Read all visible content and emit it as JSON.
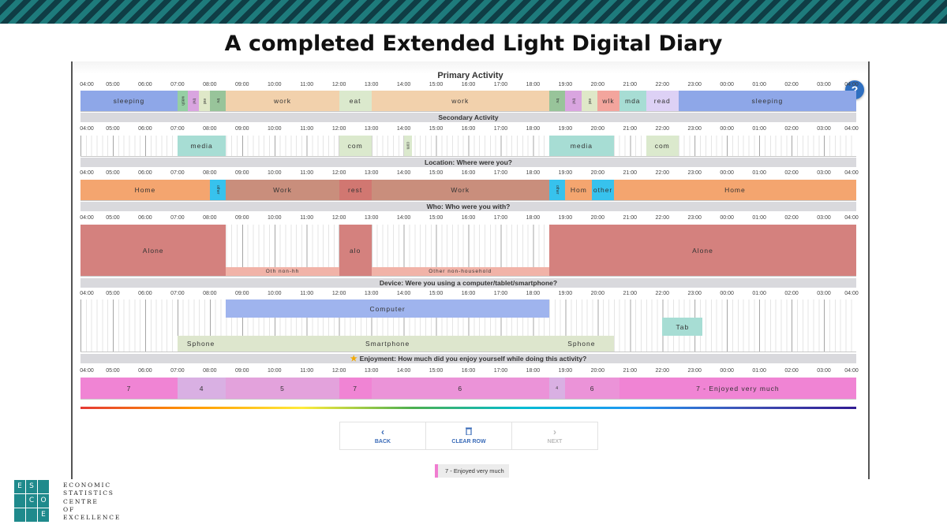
{
  "slide": {
    "title": "A completed Extended Light Digital Diary"
  },
  "hours": [
    "04:00",
    "05:00",
    "06:00",
    "07:00",
    "08:00",
    "09:00",
    "10:00",
    "11:00",
    "12:00",
    "13:00",
    "14:00",
    "15:00",
    "16:00",
    "17:00",
    "18:00",
    "19:00",
    "20:00",
    "21:00",
    "22:00",
    "23:00",
    "00:00",
    "01:00",
    "02:00",
    "03:00",
    "04:00"
  ],
  "help_button": {
    "label": "?",
    "icon": "question-icon"
  },
  "sections": {
    "primary": {
      "heading": "Primary Activity",
      "blocks": [
        {
          "label": "sleeping",
          "start": 4,
          "end": 7,
          "color": "#8ea7e8"
        },
        {
          "label": "wash",
          "start": 7,
          "end": 7.33,
          "color": "#96cfa4",
          "vertical": true
        },
        {
          "label": "trvl",
          "start": 7.33,
          "end": 7.67,
          "color": "#d9a5e0",
          "vertical": true
        },
        {
          "label": "eat",
          "start": 7.67,
          "end": 8,
          "color": "#dfe8c8",
          "vertical": true
        },
        {
          "label": "trv",
          "start": 8,
          "end": 8.5,
          "color": "#98c49a",
          "vertical": true
        },
        {
          "label": "work",
          "start": 8.5,
          "end": 12,
          "color": "#f2d1ac"
        },
        {
          "label": "eat",
          "start": 12,
          "end": 13,
          "color": "#dbe9cd"
        },
        {
          "label": "work",
          "start": 13,
          "end": 18.5,
          "color": "#f2d1ac"
        },
        {
          "label": "trv",
          "start": 18.5,
          "end": 19,
          "color": "#98c49a",
          "vertical": true
        },
        {
          "label": "trvl",
          "start": 19,
          "end": 19.5,
          "color": "#d9a5e0",
          "vertical": true
        },
        {
          "label": "eat",
          "start": 19.5,
          "end": 20,
          "color": "#dfe8c8",
          "vertical": true
        },
        {
          "label": "wlk",
          "start": 20,
          "end": 20.67,
          "color": "#f3a59d"
        },
        {
          "label": "mda",
          "start": 20.67,
          "end": 21.5,
          "color": "#a7ddd4"
        },
        {
          "label": "read",
          "start": 21.5,
          "end": 22.5,
          "color": "#ddd1f5"
        },
        {
          "label": "sleeping",
          "start": 22.5,
          "end": 28,
          "color": "#8ea7e8"
        }
      ]
    },
    "secondary": {
      "heading": "Secondary Activity",
      "blocks": [
        {
          "label": "media",
          "start": 7,
          "end": 8.5,
          "color": "#a7ddd4"
        },
        {
          "label": "com",
          "start": 12,
          "end": 13,
          "color": "#dbe9cd"
        },
        {
          "label": "com",
          "start": 14,
          "end": 14.25,
          "color": "#dbe9cd",
          "vertical": true
        },
        {
          "label": "media",
          "start": 18.5,
          "end": 20.5,
          "color": "#a7ddd4"
        },
        {
          "label": "com",
          "start": 21.5,
          "end": 22.5,
          "color": "#dbe9cd"
        }
      ]
    },
    "location": {
      "heading": "Location: Where were you?",
      "blocks": [
        {
          "label": "Home",
          "start": 4,
          "end": 8,
          "color": "#f4a56f"
        },
        {
          "label": "other",
          "start": 8,
          "end": 8.5,
          "color": "#37c2ed",
          "vertical": true
        },
        {
          "label": "Work",
          "start": 8.5,
          "end": 12,
          "color": "#c98e7c"
        },
        {
          "label": "rest",
          "start": 12,
          "end": 13,
          "color": "#d17771"
        },
        {
          "label": "Work",
          "start": 13,
          "end": 18.5,
          "color": "#c98e7c"
        },
        {
          "label": "other",
          "start": 18.5,
          "end": 19,
          "color": "#37c2ed",
          "vertical": true
        },
        {
          "label": "Hom",
          "start": 19,
          "end": 19.83,
          "color": "#f4a56f"
        },
        {
          "label": "other",
          "start": 19.83,
          "end": 20.5,
          "color": "#37c2ed"
        },
        {
          "label": "Home",
          "start": 20.5,
          "end": 28,
          "color": "#f4a56f"
        }
      ]
    },
    "who": {
      "heading": "Who: Who were you with?",
      "blocks": [
        {
          "label": "Alone",
          "start": 4,
          "end": 8.5,
          "color": "#d4817e"
        },
        {
          "label": "alo",
          "start": 12,
          "end": 13,
          "color": "#d4817e"
        },
        {
          "label": "Alone",
          "start": 18.5,
          "end": 28,
          "color": "#d4817e"
        }
      ],
      "sub_blocks": [
        {
          "label": "Oth non-hh",
          "start": 8.5,
          "end": 12,
          "color": "#f1b3a8"
        },
        {
          "label": "Other non-household",
          "start": 13,
          "end": 18.5,
          "color": "#f1b3a8"
        }
      ]
    },
    "device": {
      "heading": "Device: Were you using a computer/tablet/smartphone?",
      "blocks": [
        {
          "label": "Computer",
          "start": 8.5,
          "end": 18.5,
          "color": "#9fb4ee",
          "lane": "top"
        },
        {
          "label": "Tab",
          "start": 22,
          "end": 23.25,
          "color": "#a7ddd4",
          "lane": "mid"
        },
        {
          "label": "Sphone",
          "start": 7,
          "end": 8.5,
          "color": "#dde6cd",
          "lane": "bottom",
          "align": "left"
        },
        {
          "label": "Smartphone",
          "start": 8.5,
          "end": 18.5,
          "color": "#dde6cd",
          "lane": "bottom"
        },
        {
          "label": "Sphone",
          "start": 18.5,
          "end": 20.5,
          "color": "#dde6cd",
          "lane": "bottom"
        }
      ]
    },
    "enjoyment": {
      "heading": "Enjoyment: How much did you enjoy yourself while doing this activity?",
      "blocks": [
        {
          "label": "7",
          "start": 4,
          "end": 7,
          "color": "#f084d4"
        },
        {
          "label": "4",
          "start": 7,
          "end": 8.5,
          "color": "#d9b0e3"
        },
        {
          "label": "5",
          "start": 8.5,
          "end": 12,
          "color": "#e3a2dc"
        },
        {
          "label": "7",
          "start": 12,
          "end": 13,
          "color": "#f084d4"
        },
        {
          "label": "6",
          "start": 13,
          "end": 18.5,
          "color": "#eb93d8"
        },
        {
          "label": "4",
          "start": 18.5,
          "end": 19,
          "color": "#d9b0e3",
          "small": true
        },
        {
          "label": "6",
          "start": 19,
          "end": 20.67,
          "color": "#eb93d8"
        },
        {
          "label": "7 - Enjoyed very much",
          "start": 20.67,
          "end": 28,
          "color": "#f084d4"
        }
      ]
    }
  },
  "nav": {
    "back_label": "BACK",
    "back_icon": "chevron-left-icon",
    "clear_label": "CLEAR ROW",
    "clear_icon": "trash-icon",
    "next_label": "NEXT",
    "next_icon": "chevron-right-icon"
  },
  "legend_chip": {
    "label": "7 - Enjoyed very much",
    "color": "#f07dd0"
  },
  "logo": {
    "letters": [
      "E",
      "S",
      "C",
      "O",
      "E"
    ],
    "words": [
      "ECONOMIC",
      "STATISTICS",
      "CENTRE",
      "OF",
      "EXCELLENCE"
    ]
  }
}
